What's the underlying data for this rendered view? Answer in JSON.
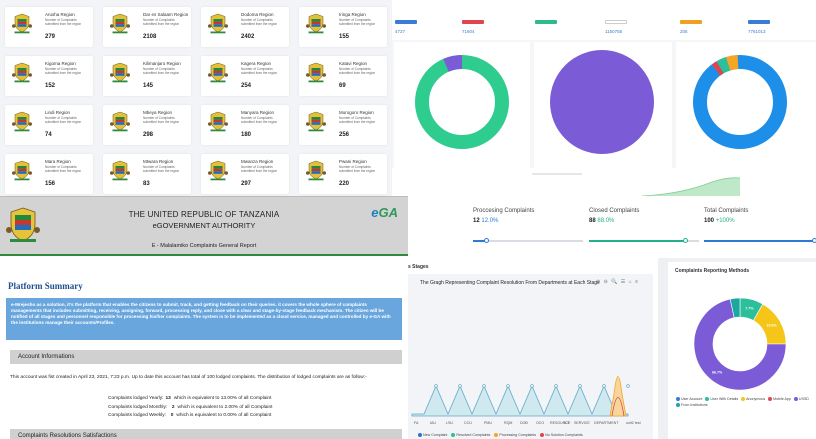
{
  "regions": {
    "desc": "Number of Complaints submitted from the region",
    "items": [
      {
        "name": "Arusha Region",
        "count": "279"
      },
      {
        "name": "Dar es Salaam Region",
        "count": "2108"
      },
      {
        "name": "Dodoma Region",
        "count": "2402"
      },
      {
        "name": "Iringa Region",
        "count": "155"
      },
      {
        "name": "Kigoma Region",
        "count": "152"
      },
      {
        "name": "Kilimanjaro Region",
        "count": "145"
      },
      {
        "name": "Kagera Region",
        "count": "254"
      },
      {
        "name": "Katavi Region",
        "count": "69"
      },
      {
        "name": "Lindi Region",
        "count": "74"
      },
      {
        "name": "Mbeya Region",
        "count": "298"
      },
      {
        "name": "Manyara Region",
        "count": "180"
      },
      {
        "name": "Morogoro Region",
        "count": "256"
      },
      {
        "name": "Mara Region",
        "count": "156"
      },
      {
        "name": "Mtwara Region",
        "count": "83"
      },
      {
        "name": "Mwanza Region",
        "count": "297"
      },
      {
        "name": "Pwani Region",
        "count": "220"
      }
    ]
  },
  "dashboard": {
    "stats": [
      {
        "value": "4727",
        "color": "#3a7bd5"
      },
      {
        "value": "71604",
        "color": "#e0454f"
      },
      {
        "value": "",
        "color": "#31b98b"
      },
      {
        "value": "1150755",
        "color": "#ffffff"
      },
      {
        "value": "205",
        "color": "#f0a020"
      },
      {
        "value": "7761013",
        "color": "#3a7bd5"
      }
    ],
    "accent_green": "#2ecc8f",
    "accent_purple": "#7b5bd6",
    "accent_blue": "#1e8fe8"
  },
  "status": {
    "items": [
      {
        "label": "Proccesing Complaints",
        "count": "12",
        "pct": "12.0%",
        "pct_color": "#2c7ad6",
        "fraction": 0.12,
        "color": "#2c7ad6"
      },
      {
        "label": "Closed Complaints",
        "count": "88",
        "pct": "88.0%",
        "pct_color": "#23b08a",
        "fraction": 0.88,
        "color": "#23b08a"
      },
      {
        "label": "Total Complaints",
        "count": "100",
        "pct": "+100%",
        "pct_color": "#23b08a",
        "fraction": 1.0,
        "color": "#2c7ad6"
      }
    ]
  },
  "dept_chart": {
    "heading": "s Stages",
    "title": "The Gragh Representing Complaint Resolution From Departments at Each Stage",
    "toolbar": "⊕ ⊖ 🔍 ☰ ⌂ ≡",
    "x_labels": [
      "FA",
      "IAU",
      "LSU",
      "CCU",
      "PMU",
      "RQM",
      "DOB",
      "OCG",
      "RESOURCE",
      "ICT",
      "SERVICE",
      "DEPARTMENT",
      "unit2 test"
    ],
    "legend": [
      {
        "label": "New Complaint",
        "color": "#2f6fd0"
      },
      {
        "label": "Resolved Complaints",
        "color": "#2bbf9a"
      },
      {
        "label": "Processing Complaints",
        "color": "#f5a623"
      },
      {
        "label": "No Solution Complaints",
        "color": "#e0454f"
      }
    ]
  },
  "chart_data": {
    "type": "pie",
    "title": "Complaints Reporting Methods",
    "categories": [
      "User Account",
      "User With Details",
      "Anonymous",
      "Mobile App",
      "USSD",
      "From Institutions"
    ],
    "values": [
      0,
      7.7,
      15.6,
      0,
      66.7,
      3.2
    ],
    "colors": [
      "#3a7bd5",
      "#2bbf9a",
      "#f5c518",
      "#e0454f",
      "#7b5bd6",
      "#1aa8a0"
    ],
    "slice_labels": [
      "",
      "7.7%",
      "15.6%",
      "",
      "66.7%",
      ""
    ]
  },
  "report": {
    "gov": "THE UNITED REPUBLIC OF TANZANIA",
    "authority": "eGOVERNMENT AUTHORITY",
    "subtitle": "E - Malalamiko Complaints General Report",
    "logo_e": "e",
    "logo_ga": "GA",
    "platform_title": "Platform Summary",
    "platform_text": "e-Mrejesho as a solution, it's the platform that enables the citizens to submit, track, and getting feedback on their queries. it covers the whole sphere of complaints managements that includes submitting, receiving, assigning, forward, processing reply, and close with a clear and stage-by-stage feedback mechanism. The citizen will be notified of all stages and personnel responsible for processing his/her complaints. The system is to be implemented as a cloud service, managed and controlled by e-GA with the institutions manage their accounts/Profiles.",
    "account_heading": "Account Informations",
    "account_text": "This account was fist created in April 23, 2021, 7:23 p.m. Up to date this account has total of 100 lodged complaints. The distribution of lodged complaints are as follow:-",
    "rows": [
      {
        "label": "Complaints lodged Yearly:",
        "value": "13",
        "desc": "which is equivalent to 13.00% of all Complaint"
      },
      {
        "label": "Complaints lodged Monthly:",
        "value": "2",
        "desc": "which is equivalent to 2.00% of all Complaint"
      },
      {
        "label": "Complaints lodged Weekly:",
        "value": "0",
        "desc": "which is equivalent to 0.00% of all Complaint"
      }
    ],
    "resolution_heading": "Complaints Resolutions Satisfactions"
  }
}
